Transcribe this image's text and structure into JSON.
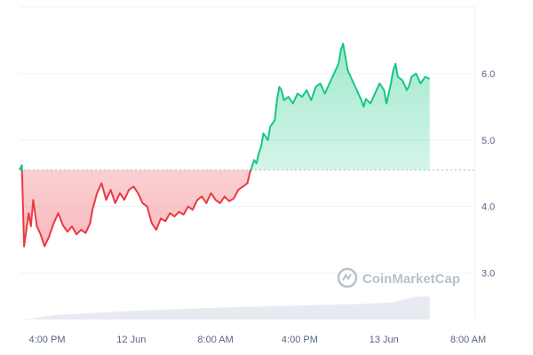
{
  "chart_data": {
    "type": "area",
    "title": "",
    "xlabel": "",
    "ylabel": "",
    "baseline": 4.55,
    "ylim": [
      2.3,
      7.0
    ],
    "xlim": [
      0,
      1
    ],
    "y_ticks": [
      "3.0",
      "4.0",
      "5.0",
      "6.0"
    ],
    "x_ticks": [
      "4:00 PM",
      "12 Jun",
      "8:00 AM",
      "4:00 PM",
      "13 Jun",
      "8:00 AM"
    ],
    "grid": "horizontal",
    "colors": {
      "up_line": "#16c784",
      "down_line": "#ea3943",
      "up_fill": "#16c784",
      "down_fill": "#ea3943",
      "baseline": "#bcc3cf",
      "grid": "#eff2f5",
      "volume": "#e3e8ef"
    },
    "watermark": "CoinMarketCap",
    "series": [
      {
        "values": [
          [
            0.0,
            4.55
          ],
          [
            0.005,
            4.62
          ],
          [
            0.01,
            3.4
          ],
          [
            0.015,
            3.65
          ],
          [
            0.02,
            3.9
          ],
          [
            0.025,
            3.7
          ],
          [
            0.03,
            4.1
          ],
          [
            0.038,
            3.7
          ],
          [
            0.045,
            3.6
          ],
          [
            0.055,
            3.4
          ],
          [
            0.065,
            3.55
          ],
          [
            0.075,
            3.75
          ],
          [
            0.085,
            3.9
          ],
          [
            0.095,
            3.72
          ],
          [
            0.105,
            3.62
          ],
          [
            0.115,
            3.7
          ],
          [
            0.125,
            3.58
          ],
          [
            0.135,
            3.65
          ],
          [
            0.145,
            3.6
          ],
          [
            0.155,
            3.75
          ],
          [
            0.16,
            3.95
          ],
          [
            0.17,
            4.2
          ],
          [
            0.18,
            4.35
          ],
          [
            0.19,
            4.1
          ],
          [
            0.2,
            4.25
          ],
          [
            0.21,
            4.05
          ],
          [
            0.22,
            4.2
          ],
          [
            0.23,
            4.1
          ],
          [
            0.24,
            4.25
          ],
          [
            0.25,
            4.3
          ],
          [
            0.26,
            4.2
          ],
          [
            0.27,
            4.05
          ],
          [
            0.28,
            4.0
          ],
          [
            0.29,
            3.75
          ],
          [
            0.3,
            3.65
          ],
          [
            0.31,
            3.82
          ],
          [
            0.32,
            3.78
          ],
          [
            0.33,
            3.9
          ],
          [
            0.34,
            3.85
          ],
          [
            0.35,
            3.92
          ],
          [
            0.36,
            3.88
          ],
          [
            0.37,
            4.0
          ],
          [
            0.38,
            3.95
          ],
          [
            0.39,
            4.1
          ],
          [
            0.4,
            4.15
          ],
          [
            0.41,
            4.05
          ],
          [
            0.42,
            4.2
          ],
          [
            0.43,
            4.1
          ],
          [
            0.44,
            4.05
          ],
          [
            0.45,
            4.15
          ],
          [
            0.46,
            4.08
          ],
          [
            0.47,
            4.12
          ],
          [
            0.48,
            4.25
          ],
          [
            0.49,
            4.3
          ],
          [
            0.5,
            4.35
          ],
          [
            0.505,
            4.5
          ],
          [
            0.51,
            4.6
          ],
          [
            0.515,
            4.7
          ],
          [
            0.52,
            4.65
          ],
          [
            0.525,
            4.8
          ],
          [
            0.53,
            4.9
          ],
          [
            0.535,
            5.1
          ],
          [
            0.54,
            5.05
          ],
          [
            0.545,
            5.0
          ],
          [
            0.55,
            5.2
          ],
          [
            0.56,
            5.3
          ],
          [
            0.565,
            5.6
          ],
          [
            0.57,
            5.8
          ],
          [
            0.575,
            5.75
          ],
          [
            0.58,
            5.6
          ],
          [
            0.59,
            5.65
          ],
          [
            0.6,
            5.55
          ],
          [
            0.61,
            5.7
          ],
          [
            0.62,
            5.65
          ],
          [
            0.63,
            5.75
          ],
          [
            0.64,
            5.6
          ],
          [
            0.65,
            5.8
          ],
          [
            0.66,
            5.85
          ],
          [
            0.67,
            5.7
          ],
          [
            0.68,
            5.85
          ],
          [
            0.69,
            6.0
          ],
          [
            0.7,
            6.15
          ],
          [
            0.705,
            6.35
          ],
          [
            0.71,
            6.45
          ],
          [
            0.715,
            6.25
          ],
          [
            0.72,
            6.05
          ],
          [
            0.73,
            5.9
          ],
          [
            0.74,
            5.75
          ],
          [
            0.75,
            5.6
          ],
          [
            0.755,
            5.5
          ],
          [
            0.76,
            5.62
          ],
          [
            0.77,
            5.55
          ],
          [
            0.78,
            5.7
          ],
          [
            0.79,
            5.85
          ],
          [
            0.8,
            5.75
          ],
          [
            0.805,
            5.55
          ],
          [
            0.81,
            5.7
          ],
          [
            0.815,
            5.85
          ],
          [
            0.82,
            6.05
          ],
          [
            0.825,
            6.15
          ],
          [
            0.83,
            5.95
          ],
          [
            0.84,
            5.9
          ],
          [
            0.85,
            5.75
          ],
          [
            0.855,
            5.82
          ],
          [
            0.86,
            5.95
          ],
          [
            0.87,
            6.0
          ],
          [
            0.88,
            5.85
          ],
          [
            0.89,
            5.95
          ],
          [
            0.9,
            5.92
          ]
        ]
      }
    ],
    "volume_profile": [
      [
        0.0,
        0.0
      ],
      [
        0.03,
        0.02
      ],
      [
        0.08,
        0.08
      ],
      [
        0.15,
        0.11
      ],
      [
        0.25,
        0.15
      ],
      [
        0.35,
        0.18
      ],
      [
        0.45,
        0.21
      ],
      [
        0.55,
        0.23
      ],
      [
        0.65,
        0.25
      ],
      [
        0.75,
        0.27
      ],
      [
        0.82,
        0.3
      ],
      [
        0.86,
        0.38
      ],
      [
        0.88,
        0.4
      ],
      [
        0.9,
        0.4
      ]
    ]
  }
}
